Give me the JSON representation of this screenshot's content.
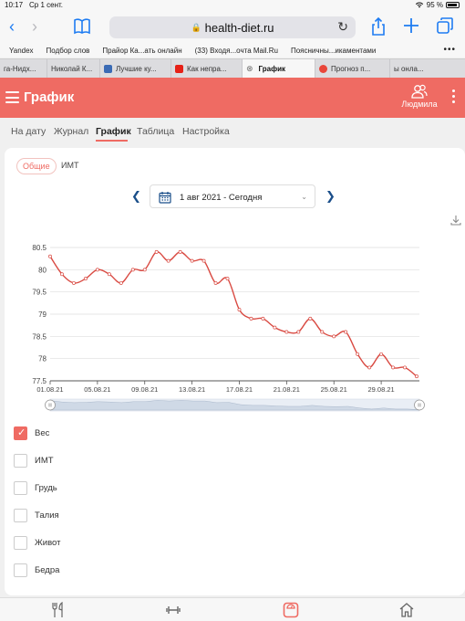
{
  "status_bar": {
    "time": "10:17",
    "date": "Ср 1 сент.",
    "battery": "95 %"
  },
  "browser": {
    "url": "health-diet.ru",
    "bookmarks": [
      "Yandex",
      "Подбор слов",
      "Прайор Ка...ать онлайн",
      "(33) Входя...очта Mail.Ru",
      "Поясничны...икаментами"
    ],
    "tabs": [
      {
        "label": "га-Нидх...",
        "active": false
      },
      {
        "label": "Николай К...",
        "active": false
      },
      {
        "label": "Лучшие ку...",
        "active": false
      },
      {
        "label": "Как непра...",
        "active": false
      },
      {
        "label": "График",
        "active": true
      },
      {
        "label": "Прогноз п...",
        "active": false
      },
      {
        "label": "ы онла...",
        "active": false
      }
    ]
  },
  "app": {
    "title": "График",
    "user_name": "Людмила",
    "subnav": [
      "На дату",
      "Журнал",
      "График",
      "Таблица",
      "Настройка"
    ],
    "subnav_active": "График"
  },
  "card": {
    "chips": [
      "Общие",
      "ИМТ"
    ],
    "date_range": "1 авг 2021 - Сегодня",
    "checkboxes": [
      {
        "label": "Вес",
        "checked": true
      },
      {
        "label": "ИМТ",
        "checked": false
      },
      {
        "label": "Грудь",
        "checked": false
      },
      {
        "label": "Талия",
        "checked": false
      },
      {
        "label": "Живот",
        "checked": false
      },
      {
        "label": "Бедра",
        "checked": false
      }
    ]
  },
  "colors": {
    "accent": "#ef6b63",
    "line": "#d94a42",
    "link": "#1b4f8a"
  },
  "chart_data": {
    "type": "line",
    "x": [
      "01.08.21",
      "02.08.21",
      "03.08.21",
      "04.08.21",
      "05.08.21",
      "06.08.21",
      "07.08.21",
      "08.08.21",
      "09.08.21",
      "10.08.21",
      "11.08.21",
      "12.08.21",
      "13.08.21",
      "14.08.21",
      "15.08.21",
      "16.08.21",
      "17.08.21",
      "18.08.21",
      "19.08.21",
      "20.08.21",
      "21.08.21",
      "22.08.21",
      "23.08.21",
      "24.08.21",
      "25.08.21",
      "26.08.21",
      "27.08.21",
      "28.08.21",
      "29.08.21",
      "30.08.21",
      "31.08.21",
      "01.09.21"
    ],
    "series": [
      {
        "values": [
          80.3,
          79.9,
          79.7,
          79.8,
          80.0,
          79.9,
          79.7,
          80.0,
          80.0,
          80.4,
          80.2,
          80.4,
          80.2,
          80.2,
          79.7,
          79.8,
          79.1,
          78.9,
          78.9,
          78.7,
          78.6,
          78.6,
          78.9,
          78.6,
          78.5,
          78.6,
          78.1,
          77.8,
          78.1,
          77.8,
          77.8,
          77.6
        ]
      }
    ],
    "x_tick_labels": [
      "01.08.21",
      "05.08.21",
      "09.08.21",
      "13.08.21",
      "17.08.21",
      "21.08.21",
      "25.08.21",
      "29.08.21"
    ],
    "y_tick_labels": [
      "77.5",
      "78",
      "78.5",
      "79",
      "79.5",
      "80",
      "80.5"
    ],
    "ylim": [
      77.5,
      80.5
    ],
    "grid": true
  }
}
